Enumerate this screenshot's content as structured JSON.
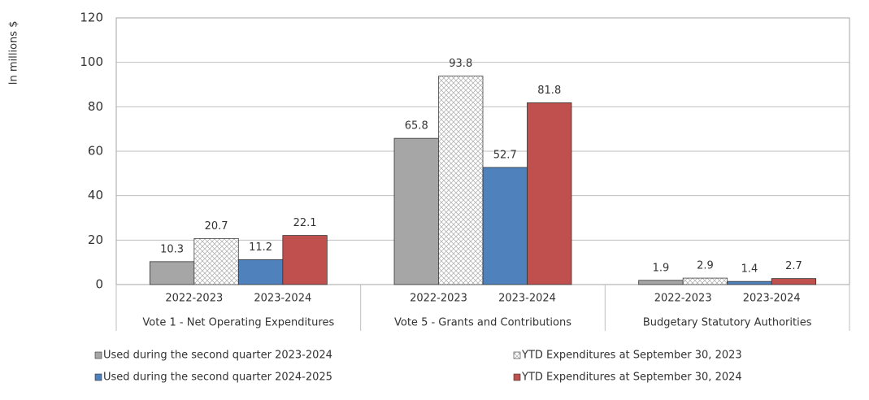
{
  "chart_data": {
    "type": "bar",
    "y_label": "In millions $",
    "categories": [
      "Vote 1 - Net Operating Expenditures",
      "Vote  5 - Grants and Contributions",
      "Budgetary Statutory Authorities"
    ],
    "subcategories": [
      "2022-2023",
      "2023-2024"
    ],
    "series": [
      {
        "name": "Used during the second quarter 2023-2024",
        "color": "#a6a6a6",
        "values": [
          10.3,
          65.8,
          1.9
        ]
      },
      {
        "name": "YTD Expenditures at September 30, 2023",
        "color": "#ffffff",
        "hatch": true,
        "values": [
          20.7,
          93.8,
          2.9
        ]
      },
      {
        "name": "Used during the second quarter 2024-2025",
        "color": "#4f81bd",
        "values": [
          11.2,
          52.7,
          1.4
        ]
      },
      {
        "name": "YTD Expenditures at September 30, 2024",
        "color": "#c0504d",
        "values": [
          22.1,
          81.8,
          2.7
        ]
      }
    ],
    "ylim": [
      0,
      120
    ],
    "yticks": [
      0,
      20,
      40,
      60,
      80,
      100,
      120
    ],
    "grid": true
  }
}
